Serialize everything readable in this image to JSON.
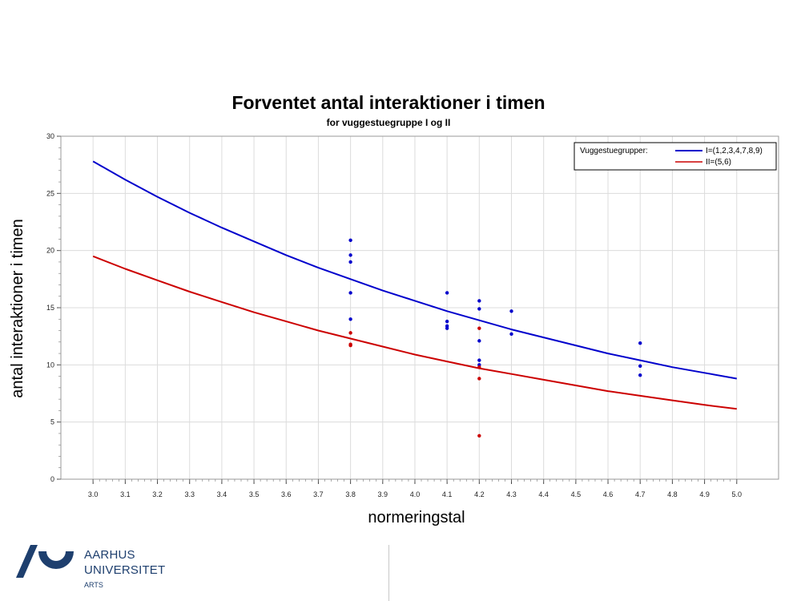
{
  "chart_data": {
    "type": "line",
    "title": "Forventet antal interaktioner i timen",
    "subtitle": "for vuggestuegruppe I og II",
    "xlabel": "normeringstal",
    "ylabel": "antal interaktioner i timen",
    "xlim": [
      2.9,
      5.13
    ],
    "ylim": [
      0,
      30
    ],
    "x_ticks": [
      "3.0",
      "3.1",
      "3.2",
      "3.3",
      "3.4",
      "3.5",
      "3.6",
      "3.7",
      "3.8",
      "3.9",
      "4.0",
      "4.1",
      "4.2",
      "4.3",
      "4.4",
      "4.5",
      "4.6",
      "4.7",
      "4.8",
      "4.9",
      "5.0"
    ],
    "y_ticks": [
      "0",
      "5",
      "10",
      "15",
      "20",
      "25",
      "30"
    ],
    "grid": true,
    "legend_title": "Vuggestuegrupper:",
    "legend_position": "top-right",
    "series": [
      {
        "name": "I=(1,2,3,4,7,8,9)",
        "color": "#0000cc",
        "x": [
          3.0,
          3.1,
          3.2,
          3.3,
          3.4,
          3.5,
          3.6,
          3.7,
          3.8,
          3.9,
          4.0,
          4.1,
          4.2,
          4.3,
          4.4,
          4.5,
          4.6,
          4.7,
          4.8,
          4.9,
          5.0
        ],
        "y": [
          27.8,
          26.2,
          24.7,
          23.3,
          22.0,
          20.8,
          19.6,
          18.5,
          17.5,
          16.5,
          15.6,
          14.7,
          13.9,
          13.1,
          12.4,
          11.7,
          11.0,
          10.4,
          9.8,
          9.3,
          8.8
        ]
      },
      {
        "name": "II=(5,6)",
        "color": "#cc0000",
        "x": [
          3.0,
          3.1,
          3.2,
          3.3,
          3.4,
          3.5,
          3.6,
          3.7,
          3.8,
          3.9,
          4.0,
          4.1,
          4.2,
          4.3,
          4.4,
          4.5,
          4.6,
          4.7,
          4.8,
          4.9,
          5.0
        ],
        "y": [
          19.5,
          18.4,
          17.4,
          16.4,
          15.5,
          14.6,
          13.8,
          13.0,
          12.3,
          11.6,
          10.9,
          10.3,
          9.7,
          9.2,
          8.7,
          8.2,
          7.7,
          7.3,
          6.9,
          6.5,
          6.15
        ]
      }
    ],
    "scatter": [
      {
        "color": "#0000cc",
        "points": [
          [
            3.8,
            20.9
          ],
          [
            3.8,
            19.6
          ],
          [
            3.8,
            19.0
          ],
          [
            3.8,
            16.3
          ],
          [
            3.8,
            14.0
          ],
          [
            4.1,
            16.3
          ],
          [
            4.1,
            13.8
          ],
          [
            4.1,
            13.4
          ],
          [
            4.1,
            13.2
          ],
          [
            4.2,
            15.6
          ],
          [
            4.2,
            14.9
          ],
          [
            4.2,
            12.1
          ],
          [
            4.2,
            10.4
          ],
          [
            4.2,
            10.0
          ],
          [
            4.3,
            14.7
          ],
          [
            4.3,
            12.7
          ],
          [
            4.7,
            11.9
          ],
          [
            4.7,
            9.9
          ],
          [
            4.7,
            9.1
          ]
        ]
      },
      {
        "color": "#cc0000",
        "points": [
          [
            3.8,
            12.8
          ],
          [
            3.8,
            11.8
          ],
          [
            3.8,
            11.7
          ],
          [
            4.2,
            13.2
          ],
          [
            4.2,
            9.8
          ],
          [
            4.2,
            8.8
          ],
          [
            4.2,
            3.8
          ]
        ]
      }
    ]
  },
  "footer": {
    "university_line1": "AARHUS",
    "university_line2": "UNIVERSITET",
    "faculty": "ARTS",
    "brand_color": "#1e3f6e"
  }
}
